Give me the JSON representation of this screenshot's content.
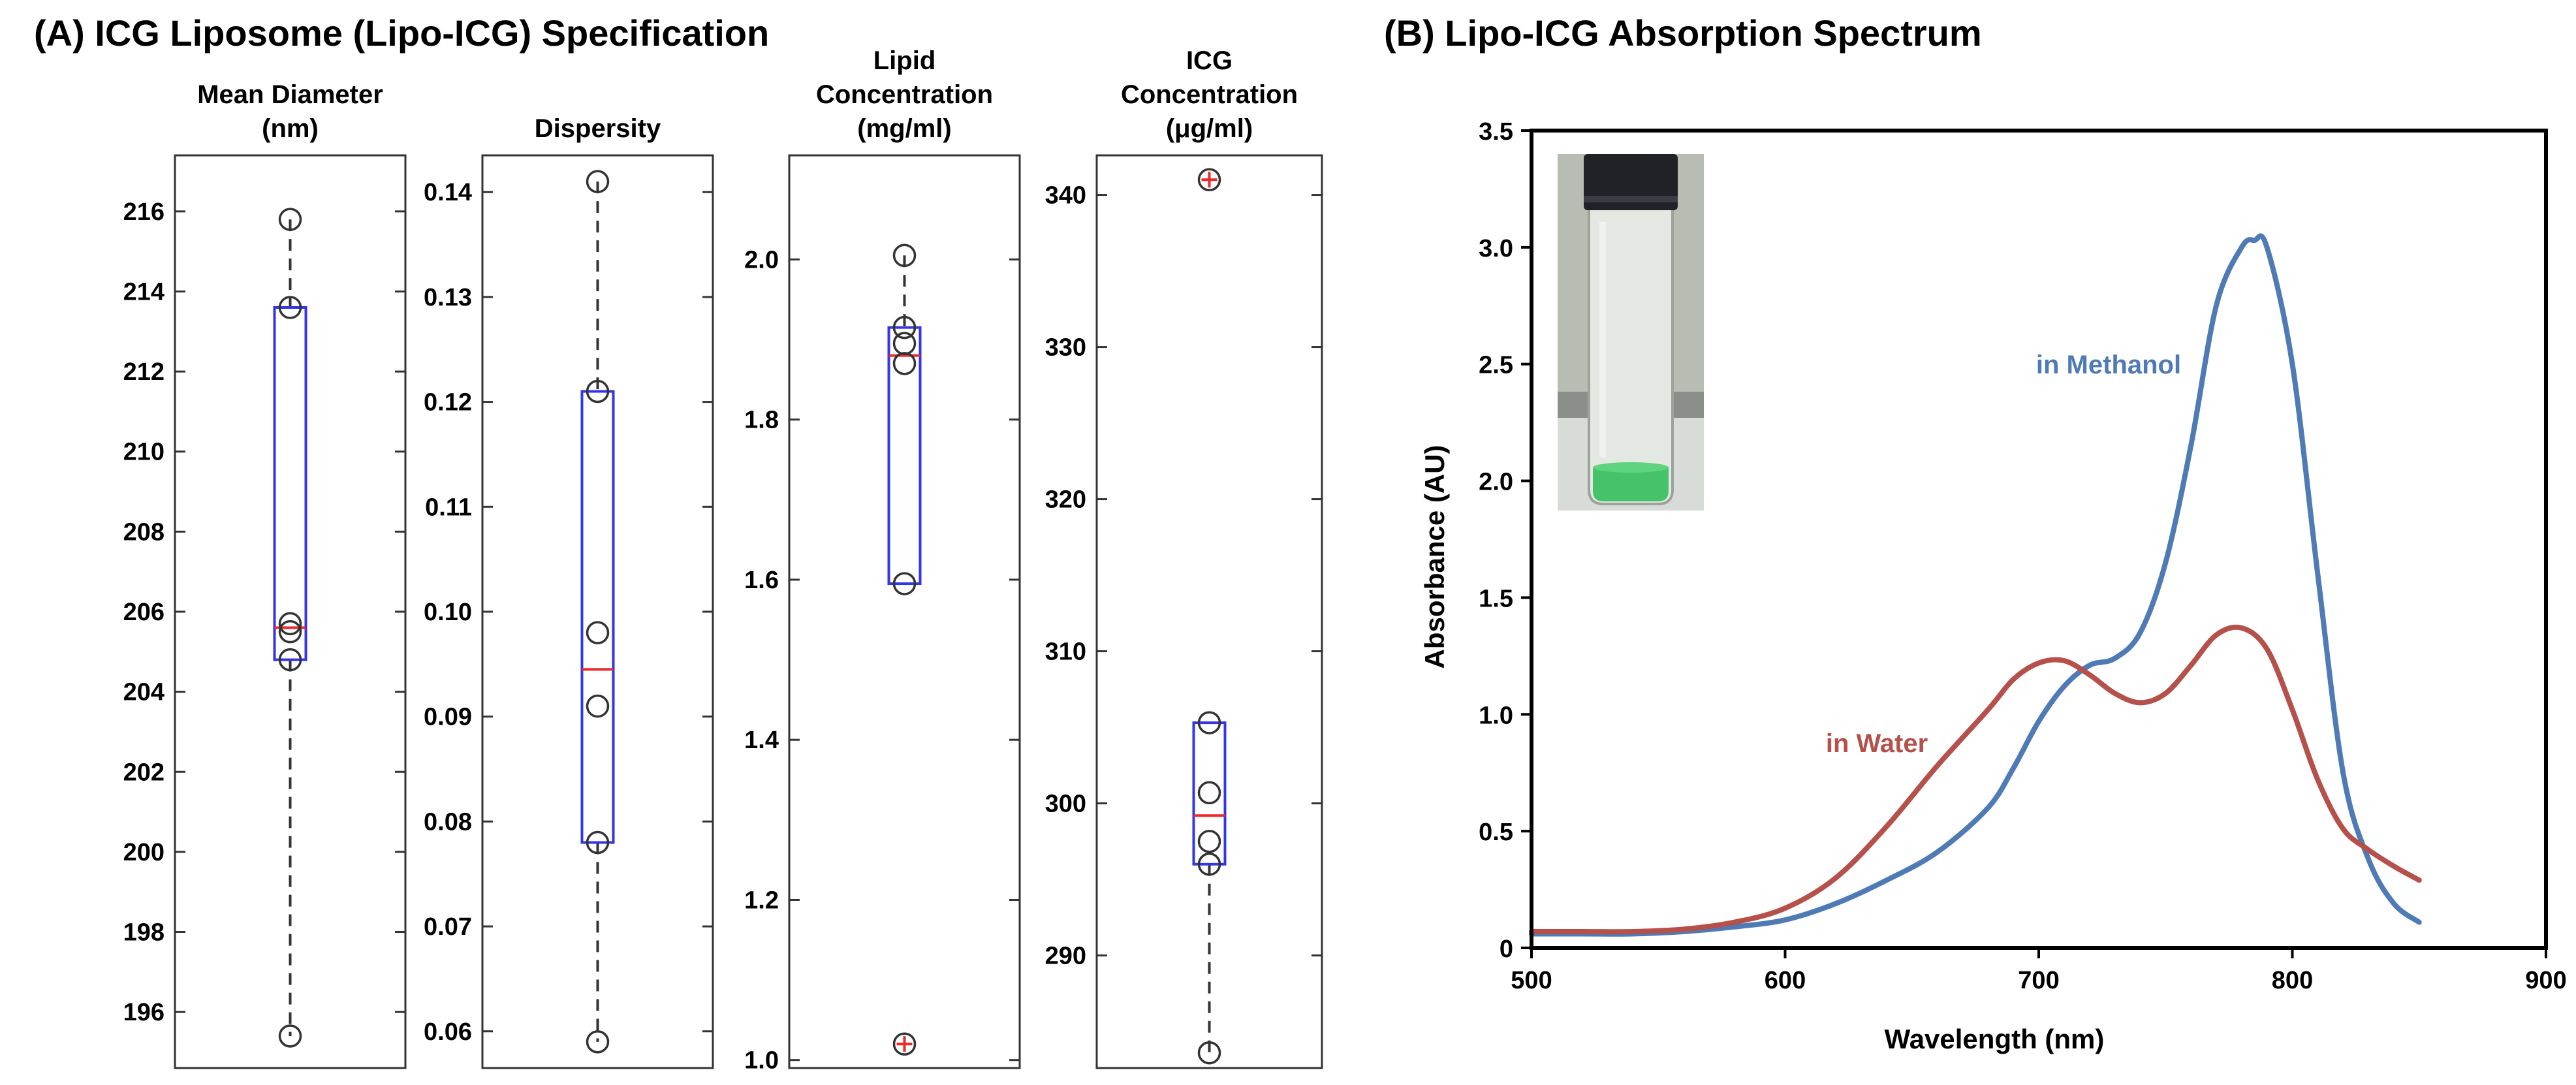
{
  "chart_data": [
    {
      "type": "box",
      "panel_title": "(A) ICG Liposome (Lipo-ICG) Specification",
      "subplots": [
        {
          "title_lines": [
            "Mean Diameter",
            "(nm)"
          ],
          "ylim": [
            194.6,
            217.4
          ],
          "ticks": [
            196,
            198,
            200,
            202,
            204,
            206,
            208,
            210,
            212,
            214,
            216
          ],
          "tick_labels": [
            "196",
            "198",
            "200",
            "202",
            "204",
            "206",
            "208",
            "210",
            "212",
            "214",
            "216"
          ],
          "box": {
            "q1": 204.8,
            "median": 205.6,
            "q3": 213.6,
            "whisker_low": 195.4,
            "whisker_high": 215.8
          },
          "points": [
            215.8,
            213.6,
            205.7,
            205.5,
            204.8,
            195.4
          ],
          "outliers": []
        },
        {
          "title_lines": [
            "Dispersity"
          ],
          "ylim": [
            0.0565,
            0.1435
          ],
          "ticks": [
            0.06,
            0.07,
            0.08,
            0.09,
            0.1,
            0.11,
            0.12,
            0.13,
            0.14
          ],
          "tick_labels": [
            "0.06",
            "0.07",
            "0.08",
            "0.09",
            "0.10",
            "0.11",
            "0.12",
            "0.13",
            "0.14"
          ],
          "box": {
            "q1": 0.078,
            "median": 0.0945,
            "q3": 0.121,
            "whisker_low": 0.059,
            "whisker_high": 0.141
          },
          "points": [
            0.141,
            0.121,
            0.098,
            0.091,
            0.078,
            0.059
          ],
          "outliers": []
        },
        {
          "title_lines": [
            "Lipid",
            "Concentration",
            "(mg/ml)"
          ],
          "ylim": [
            0.99,
            2.13
          ],
          "ticks": [
            1.0,
            1.2,
            1.4,
            1.6,
            1.8,
            2.0
          ],
          "tick_labels": [
            "1.0",
            "1.2",
            "1.4",
            "1.6",
            "1.8",
            "2.0"
          ],
          "box": {
            "q1": 1.595,
            "median": 1.88,
            "q3": 1.915,
            "whisker_low": 1.595,
            "whisker_high": 2.005
          },
          "points": [
            2.005,
            1.915,
            1.895,
            1.87,
            1.595
          ],
          "outliers": [
            1.02
          ]
        },
        {
          "title_lines": [
            "ICG",
            "Concentration",
            "(μg/ml)"
          ],
          "ylim": [
            282.6,
            342.6
          ],
          "ticks": [
            290,
            300,
            310,
            320,
            330,
            340
          ],
          "tick_labels": [
            "290",
            "300",
            "310",
            "320",
            "330",
            "340"
          ],
          "box": {
            "q1": 296.0,
            "median": 299.2,
            "q3": 305.3,
            "whisker_low": 283.6,
            "whisker_high": 305.3
          },
          "points": [
            305.3,
            300.7,
            297.5,
            296.0,
            283.6
          ],
          "outliers": [
            341.0
          ]
        }
      ]
    },
    {
      "type": "line",
      "title": "(B) Lipo-ICG Absorption Spectrum",
      "xlabel": "Wavelength (nm)",
      "ylabel": "Absorbance (AU)",
      "xlim": [
        500,
        900
      ],
      "ylim": [
        0,
        3.5
      ],
      "xticks": [
        500,
        600,
        700,
        800,
        900
      ],
      "xtick_labels": [
        "500",
        "600",
        "700",
        "800",
        "900"
      ],
      "yticks": [
        0,
        0.5,
        1.0,
        1.5,
        2.0,
        2.5,
        3.0,
        3.5
      ],
      "ytick_labels": [
        "0",
        "0.5",
        "1.0",
        "1.5",
        "2.0",
        "2.5",
        "3.0",
        "3.5"
      ],
      "inset_photo": "vial-of-green-liposome-solution",
      "series": [
        {
          "name": "in Methanol",
          "color": "#4e7bb5",
          "x": [
            500,
            520,
            540,
            560,
            580,
            600,
            620,
            640,
            660,
            680,
            690,
            700,
            710,
            720,
            730,
            740,
            750,
            760,
            770,
            780,
            785,
            790,
            800,
            810,
            820,
            830,
            840,
            850
          ],
          "y": [
            0.06,
            0.06,
            0.06,
            0.07,
            0.09,
            0.12,
            0.19,
            0.29,
            0.41,
            0.6,
            0.77,
            0.97,
            1.12,
            1.21,
            1.24,
            1.35,
            1.65,
            2.15,
            2.75,
            3.0,
            3.03,
            3.0,
            2.5,
            1.6,
            0.75,
            0.38,
            0.19,
            0.11
          ]
        },
        {
          "name": "in Water",
          "color": "#b5504b",
          "x": [
            500,
            520,
            540,
            560,
            580,
            600,
            620,
            640,
            660,
            680,
            690,
            700,
            710,
            720,
            730,
            740,
            750,
            760,
            770,
            780,
            790,
            800,
            810,
            820,
            830,
            840,
            850
          ],
          "y": [
            0.07,
            0.07,
            0.07,
            0.08,
            0.11,
            0.17,
            0.3,
            0.52,
            0.78,
            1.02,
            1.15,
            1.22,
            1.23,
            1.17,
            1.09,
            1.05,
            1.09,
            1.21,
            1.34,
            1.37,
            1.28,
            1.02,
            0.72,
            0.51,
            0.42,
            0.35,
            0.29
          ]
        }
      ]
    }
  ]
}
